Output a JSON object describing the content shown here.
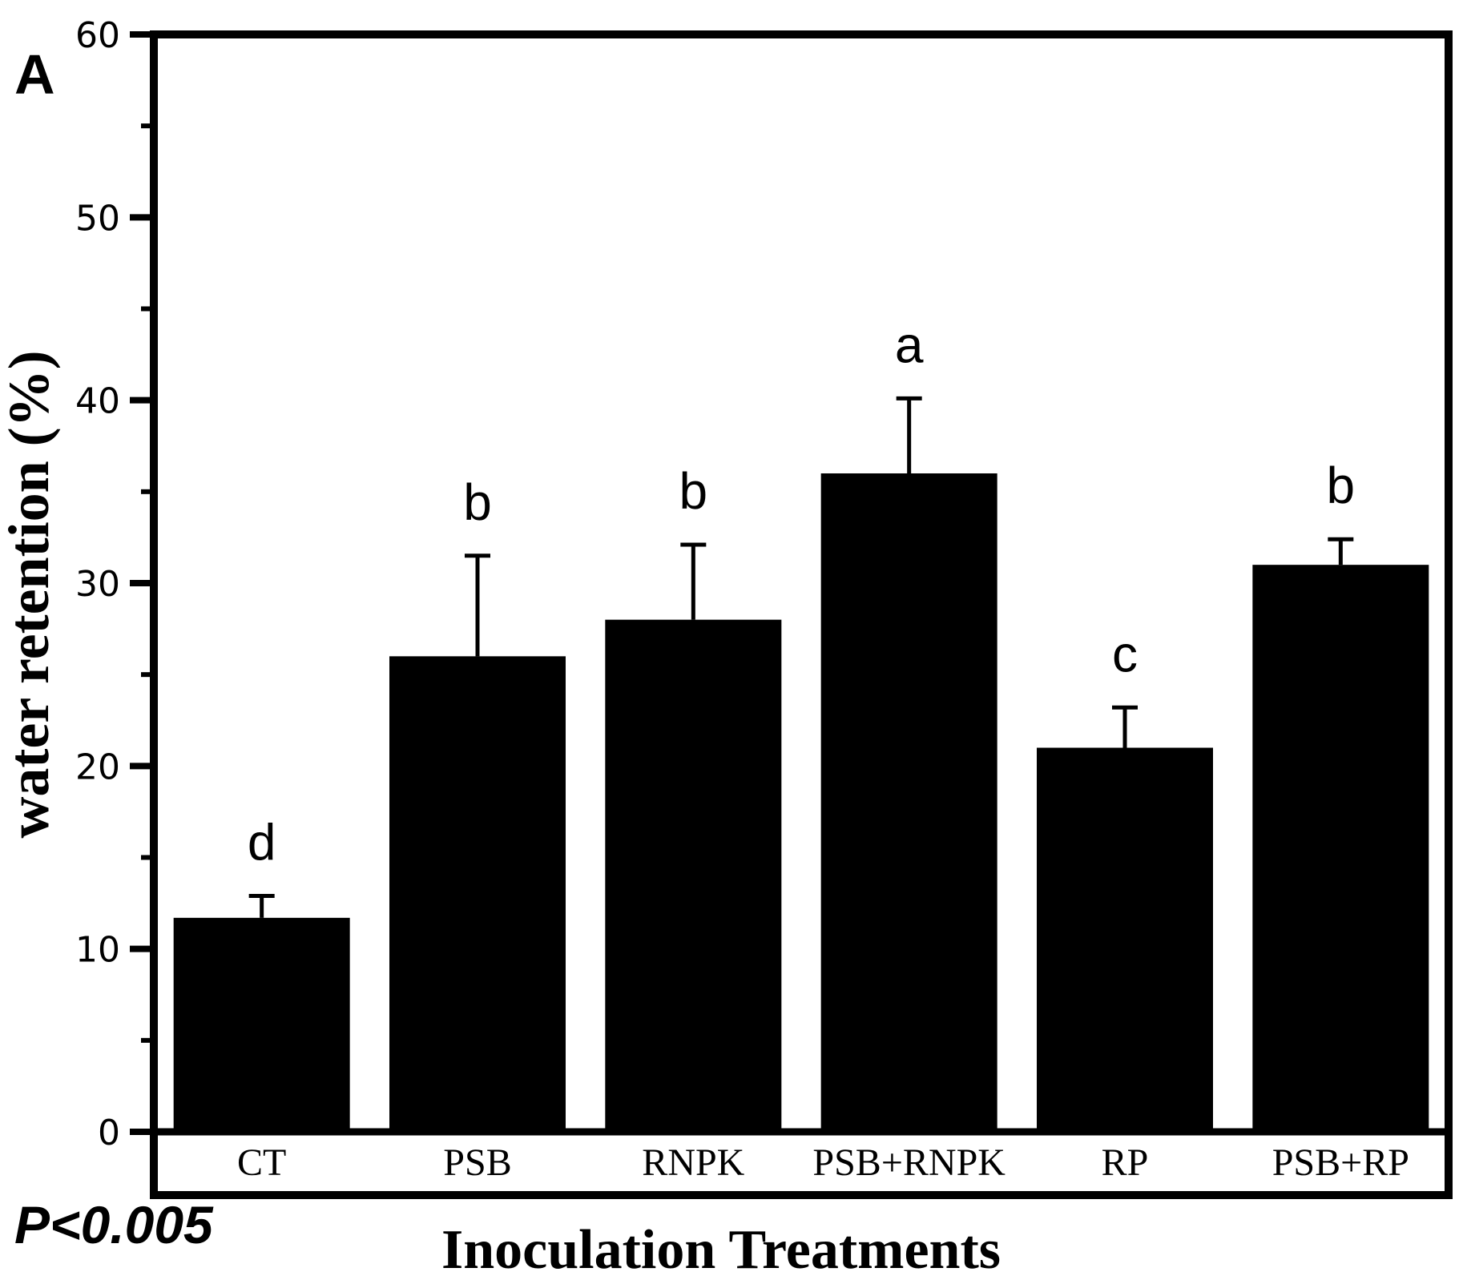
{
  "panel_label": "A",
  "p_value_note": "P<0.005",
  "chart_data": {
    "type": "bar",
    "title": "",
    "xlabel": "Inoculation Treatments",
    "ylabel": "water retention (%)",
    "categories": [
      "CT",
      "PSB",
      "RNPK",
      "PSB+RNPK",
      "RP",
      "PSB+RP"
    ],
    "values": [
      11.7,
      26,
      28,
      36,
      21,
      31
    ],
    "errors_upper": [
      1.2,
      5.5,
      4.1,
      4.1,
      2.2,
      1.4
    ],
    "sig_letters": [
      "d",
      "b",
      "b",
      "a",
      "c",
      "b"
    ],
    "ylim": [
      0,
      60
    ],
    "ytick_major": [
      0,
      10,
      20,
      30,
      40,
      50,
      60
    ],
    "ytick_minor": [
      5,
      15,
      25,
      35,
      45,
      55
    ],
    "grid": false,
    "legend": "none",
    "bar_color": "#000000",
    "axis_color": "#000000",
    "background": "#ffffff"
  }
}
